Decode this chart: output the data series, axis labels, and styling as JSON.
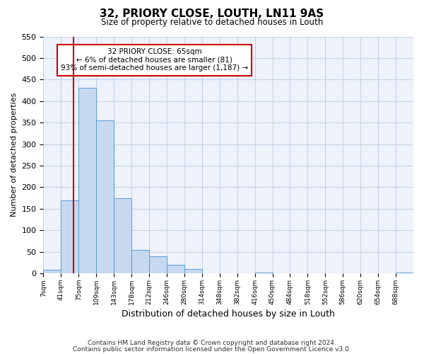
{
  "title": "32, PRIORY CLOSE, LOUTH, LN11 9AS",
  "subtitle": "Size of property relative to detached houses in Louth",
  "xlabel": "Distribution of detached houses by size in Louth",
  "ylabel": "Number of detached properties",
  "bin_labels": [
    "7sqm",
    "41sqm",
    "75sqm",
    "109sqm",
    "143sqm",
    "178sqm",
    "212sqm",
    "246sqm",
    "280sqm",
    "314sqm",
    "348sqm",
    "382sqm",
    "416sqm",
    "450sqm",
    "484sqm",
    "518sqm",
    "552sqm",
    "586sqm",
    "620sqm",
    "654sqm",
    "688sqm"
  ],
  "bar_heights": [
    8,
    170,
    430,
    355,
    175,
    55,
    40,
    20,
    10,
    0,
    0,
    0,
    2,
    0,
    0,
    0,
    0,
    0,
    0,
    0,
    2
  ],
  "bar_color": "#c6d9f0",
  "bar_edge_color": "#5b9bd5",
  "annotation_text": "32 PRIORY CLOSE: 65sqm\n← 6% of detached houses are smaller (81)\n93% of semi-detached houses are larger (1,187) →",
  "annotation_box_color": "#ffffff",
  "annotation_box_edge_color": "#cc0000",
  "red_line_color": "#cc0000",
  "ylim": [
    0,
    550
  ],
  "yticks": [
    0,
    50,
    100,
    150,
    200,
    250,
    300,
    350,
    400,
    450,
    500,
    550
  ],
  "grid_color": "#c8d4e8",
  "bg_color": "#edf2fb",
  "footnote_line1": "Contains HM Land Registry data © Crown copyright and database right 2024.",
  "footnote_line2": "Contains public sector information licensed under the Open Government Licence v3.0."
}
